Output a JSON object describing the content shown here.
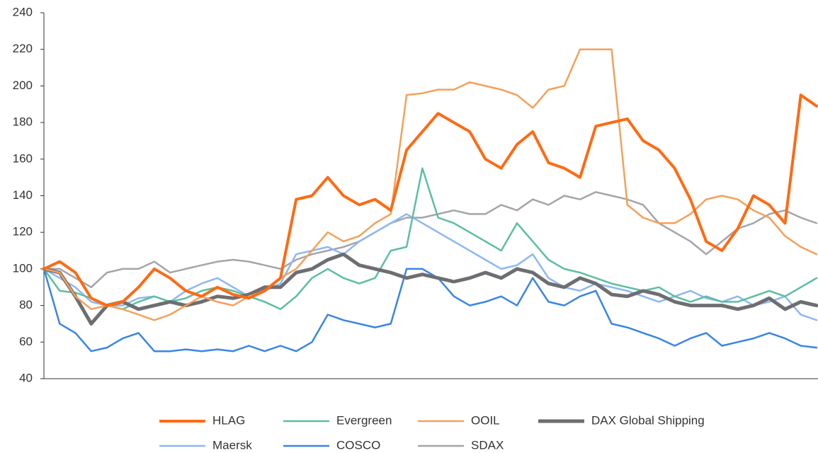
{
  "chart_data": {
    "type": "line",
    "ylim": [
      40,
      240
    ],
    "yticks": [
      40,
      60,
      80,
      100,
      120,
      140,
      160,
      180,
      200,
      220,
      240
    ],
    "grid": false,
    "legend": "bottom",
    "series": [
      {
        "name": "HLAG",
        "color": "#ff6a13",
        "values": [
          100,
          104,
          98,
          84,
          80,
          82,
          90,
          100,
          95,
          88,
          85,
          90,
          86,
          84,
          88,
          95,
          138,
          140,
          150,
          140,
          135,
          138,
          132,
          165,
          175,
          185,
          180,
          175,
          160,
          155,
          168,
          175,
          158,
          155,
          150,
          178,
          180,
          182,
          170,
          165,
          155,
          138,
          115,
          110,
          122,
          140,
          135,
          125,
          195,
          189
        ]
      },
      {
        "name": "Evergreen",
        "color": "#5bbf9f",
        "values": [
          100,
          88,
          87,
          84,
          80,
          78,
          82,
          85,
          82,
          84,
          88,
          90,
          88,
          85,
          82,
          78,
          85,
          95,
          100,
          95,
          92,
          95,
          110,
          112,
          155,
          128,
          125,
          120,
          115,
          110,
          125,
          115,
          105,
          100,
          98,
          95,
          92,
          90,
          88,
          90,
          85,
          82,
          85,
          82,
          82,
          85,
          88,
          85,
          90,
          95
        ]
      },
      {
        "name": "OOIL",
        "color": "#f5a05a",
        "values": [
          100,
          98,
          85,
          78,
          80,
          78,
          75,
          72,
          75,
          80,
          85,
          82,
          80,
          85,
          88,
          95,
          100,
          110,
          120,
          115,
          118,
          125,
          130,
          195,
          196,
          198,
          198,
          202,
          200,
          198,
          195,
          188,
          198,
          200,
          220,
          220,
          220,
          135,
          128,
          125,
          125,
          130,
          138,
          140,
          138,
          132,
          128,
          118,
          112,
          108
        ]
      },
      {
        "name": "DAX Global Shipping",
        "color": "#6d6e71",
        "values": [
          100,
          98,
          85,
          70,
          80,
          82,
          78,
          80,
          82,
          80,
          82,
          85,
          84,
          86,
          90,
          90,
          98,
          100,
          105,
          108,
          102,
          100,
          98,
          95,
          97,
          95,
          93,
          95,
          98,
          95,
          100,
          98,
          92,
          90,
          95,
          92,
          86,
          85,
          88,
          86,
          82,
          80,
          80,
          80,
          78,
          80,
          84,
          78,
          82,
          80
        ]
      },
      {
        "name": "Maersk",
        "color": "#8db8f2",
        "values": [
          100,
          95,
          90,
          82,
          80,
          80,
          84,
          85,
          82,
          88,
          92,
          95,
          90,
          85,
          88,
          92,
          108,
          110,
          112,
          108,
          115,
          120,
          125,
          130,
          125,
          120,
          115,
          110,
          105,
          100,
          102,
          108,
          95,
          90,
          88,
          92,
          90,
          88,
          85,
          82,
          85,
          88,
          84,
          82,
          85,
          80,
          82,
          85,
          75,
          72
        ]
      },
      {
        "name": "COSCO",
        "color": "#3a85e6",
        "values": [
          100,
          70,
          65,
          55,
          57,
          62,
          65,
          55,
          55,
          56,
          55,
          56,
          55,
          58,
          55,
          58,
          55,
          60,
          75,
          72,
          70,
          68,
          70,
          100,
          100,
          95,
          85,
          80,
          82,
          85,
          80,
          95,
          82,
          80,
          85,
          88,
          70,
          68,
          65,
          62,
          58,
          62,
          65,
          58,
          60,
          62,
          65,
          62,
          58,
          57
        ]
      },
      {
        "name": "SDAX",
        "color": "#a6a4a9",
        "values": [
          100,
          100,
          95,
          90,
          98,
          100,
          100,
          104,
          98,
          100,
          102,
          104,
          105,
          104,
          102,
          100,
          105,
          108,
          110,
          112,
          115,
          120,
          125,
          128,
          128,
          130,
          132,
          130,
          130,
          135,
          132,
          138,
          135,
          140,
          138,
          142,
          140,
          138,
          135,
          125,
          120,
          115,
          108,
          115,
          122,
          125,
          130,
          132,
          128,
          125
        ]
      }
    ]
  }
}
